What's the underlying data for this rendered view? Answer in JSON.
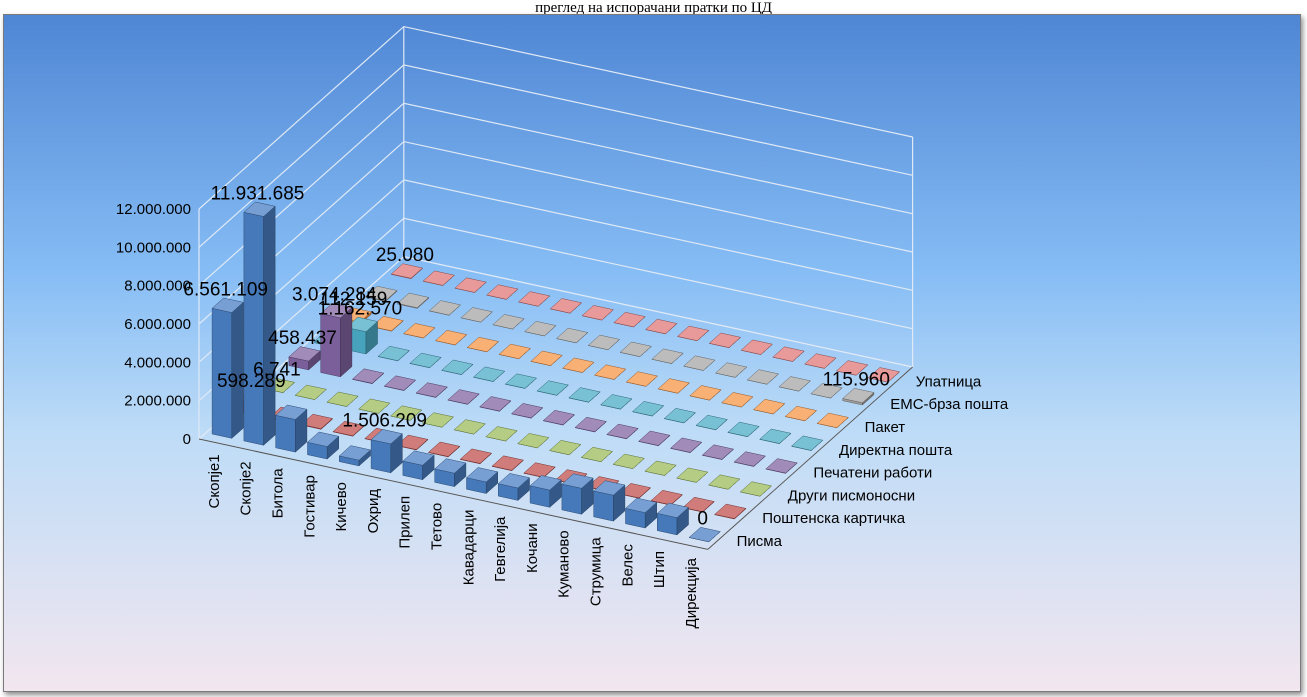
{
  "title": "преглед на испорачани пратки по ЦД",
  "chart_data": {
    "type": "bar",
    "subtype": "3d-column",
    "categories": [
      "Скопје1",
      "Скопје2",
      "Битола",
      "Гостивар",
      "Кичево",
      "Охрид",
      "Прилеп",
      "Тетово",
      "Кавадарци",
      "Гевгелија",
      "Кочани",
      "Куманово",
      "Струмица",
      "Велес",
      "Штип",
      "Дирекција"
    ],
    "ylim": [
      0,
      12000000
    ],
    "yticks": [
      "0",
      "2.000.000",
      "4.000.000",
      "6.000.000",
      "8.000.000",
      "10.000.000",
      "12.000.000"
    ],
    "grid": true,
    "legend": "none",
    "series": [
      {
        "name": "Писма",
        "color": "#4a7fc4",
        "values": [
          6561109,
          11931685,
          1700000,
          650000,
          300000,
          1506209,
          750000,
          700000,
          600000,
          650000,
          900000,
          1350000,
          1350000,
          800000,
          900000,
          0
        ],
        "labels": {
          "0": "6.561.109",
          "1": "11.931.685",
          "5": "1.506.209",
          "15": "0"
        }
      },
      {
        "name": "Поштенска картичка",
        "color": "#c0504d",
        "values": [
          598289,
          40000,
          30000,
          20000,
          20000,
          20000,
          20000,
          20000,
          20000,
          20000,
          20000,
          20000,
          20000,
          20000,
          20000,
          20000
        ],
        "labels": {
          "0": "598.289"
        }
      },
      {
        "name": "Други писмоносни",
        "color": "#9bbb59",
        "values": [
          6741,
          1000,
          1000,
          1000,
          1000,
          1000,
          1000,
          1000,
          1000,
          1000,
          1000,
          1000,
          1000,
          1000,
          1000,
          1000
        ],
        "labels": {
          "0": "6.741"
        }
      },
      {
        "name": "Печатени работи",
        "color": "#8064a2",
        "values": [
          458437,
          3074284,
          20000,
          15000,
          15000,
          15000,
          15000,
          15000,
          15000,
          15000,
          15000,
          15000,
          15000,
          15000,
          15000,
          15000
        ],
        "labels": {
          "0": "458.437",
          "1": "3.074.284"
        }
      },
      {
        "name": "Директна пошта",
        "color": "#4bacc6",
        "values": [
          80000,
          1162570,
          10000,
          10000,
          10000,
          10000,
          10000,
          10000,
          10000,
          10000,
          10000,
          10000,
          10000,
          10000,
          10000,
          10000
        ],
        "labels": {
          "1": "1.162.570"
        }
      },
      {
        "name": "Пакет",
        "color": "#f79646",
        "values": [
          112159,
          20000,
          10000,
          8000,
          8000,
          8000,
          8000,
          8000,
          8000,
          8000,
          8000,
          8000,
          8000,
          8000,
          8000,
          8000
        ],
        "labels": {
          "0": "112.159"
        }
      },
      {
        "name": "ЕМС-брза пошта",
        "color": "#a5a5a5",
        "values": [
          40000,
          40000,
          10000,
          8000,
          8000,
          8000,
          8000,
          8000,
          8000,
          8000,
          8000,
          8000,
          8000,
          8000,
          8000,
          115960
        ],
        "labels": {
          "15": "115.960"
        }
      },
      {
        "name": "Упатница",
        "color": "#e07878",
        "values": [
          25080,
          10000,
          8000,
          8000,
          8000,
          8000,
          8000,
          8000,
          8000,
          8000,
          8000,
          8000,
          8000,
          8000,
          8000,
          8000
        ],
        "labels": {
          "0": "25.080"
        }
      }
    ]
  }
}
